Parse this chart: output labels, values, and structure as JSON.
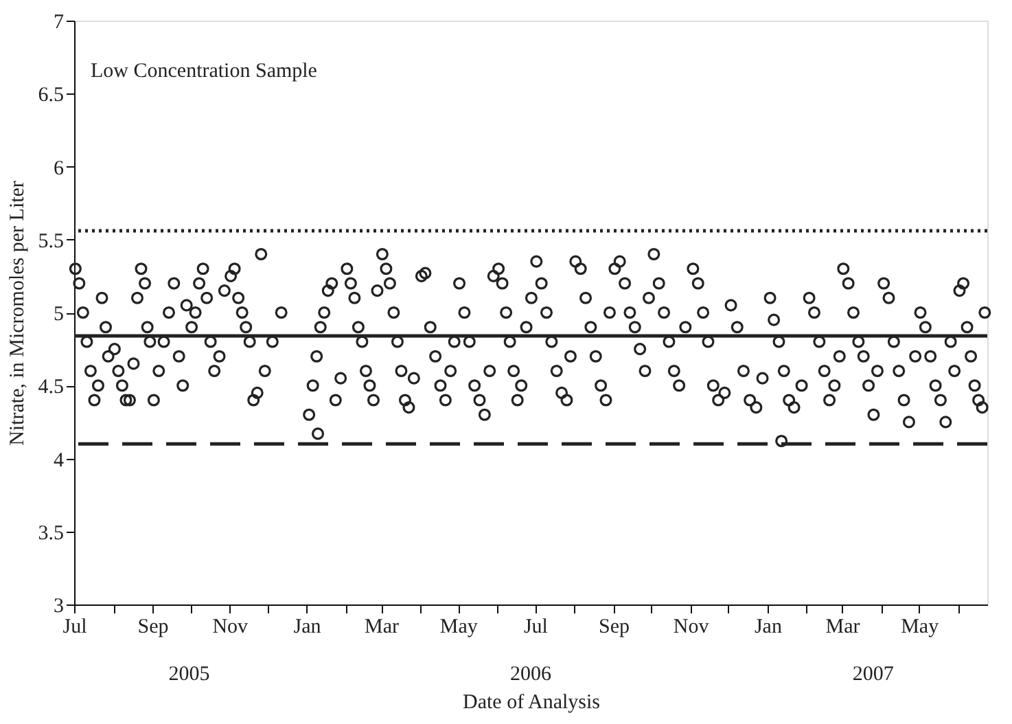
{
  "chart_data": {
    "type": "scatter",
    "xlabel": "Date of Analysis",
    "ylabel": "Nitrate, in Micromoles per Liter",
    "annotations": [
      "Low Concentration Sample",
      "2005",
      "2006",
      "2007"
    ],
    "marker": "circle",
    "grid": false,
    "xlim": [
      "2005-07-01",
      "2007-06-24"
    ],
    "xticks": [
      {
        "value": "2005-07-01",
        "label": "Jul"
      },
      {
        "value": "2005-08-01",
        "label": null
      },
      {
        "value": "2005-09-01",
        "label": "Sep"
      },
      {
        "value": "2005-10-01",
        "label": null
      },
      {
        "value": "2005-11-01",
        "label": "Nov"
      },
      {
        "value": "2005-12-01",
        "label": null
      },
      {
        "value": "2006-01-01",
        "label": "Jan"
      },
      {
        "value": "2006-02-01",
        "label": null
      },
      {
        "value": "2006-03-01",
        "label": "Mar"
      },
      {
        "value": "2006-04-01",
        "label": null
      },
      {
        "value": "2006-05-01",
        "label": "May"
      },
      {
        "value": "2006-06-01",
        "label": null
      },
      {
        "value": "2006-07-01",
        "label": "Jul"
      },
      {
        "value": "2006-08-01",
        "label": null
      },
      {
        "value": "2006-09-01",
        "label": "Sep"
      },
      {
        "value": "2006-10-01",
        "label": null
      },
      {
        "value": "2006-11-01",
        "label": "Nov"
      },
      {
        "value": "2006-12-01",
        "label": null
      },
      {
        "value": "2007-01-01",
        "label": "Jan"
      },
      {
        "value": "2007-02-01",
        "label": null
      },
      {
        "value": "2007-03-01",
        "label": "Mar"
      },
      {
        "value": "2007-04-01",
        "label": null
      },
      {
        "value": "2007-05-01",
        "label": "May"
      },
      {
        "value": "2007-06-01",
        "label": null
      }
    ],
    "ylim": [
      3,
      7
    ],
    "yticks": [
      3,
      3.5,
      4,
      4.5,
      5,
      5.5,
      6,
      6.5,
      7
    ],
    "ref_lines": [
      {
        "axis": "y",
        "value": 5.56,
        "line_style": "dotted",
        "color": "#222222"
      },
      {
        "axis": "y",
        "value": 4.84,
        "line_style": "solid",
        "color": "#222222"
      },
      {
        "axis": "y",
        "value": 4.1,
        "line_style": "dashed",
        "color": "#222222"
      }
    ],
    "series": [
      {
        "color": "#222222",
        "x": [
          "2005-07-02",
          "2005-07-05",
          "2005-07-08",
          "2005-07-11",
          "2005-07-14",
          "2005-07-17",
          "2005-07-20",
          "2005-07-23",
          "2005-07-26",
          "2005-07-28",
          "2005-08-02",
          "2005-08-05",
          "2005-08-08",
          "2005-08-11",
          "2005-08-14",
          "2005-08-17",
          "2005-08-20",
          "2005-08-23",
          "2005-08-26",
          "2005-08-28",
          "2005-08-30",
          "2005-09-02",
          "2005-09-06",
          "2005-09-10",
          "2005-09-14",
          "2005-09-18",
          "2005-09-22",
          "2005-09-25",
          "2005-09-28",
          "2005-10-02",
          "2005-10-05",
          "2005-10-08",
          "2005-10-11",
          "2005-10-14",
          "2005-10-17",
          "2005-10-20",
          "2005-10-24",
          "2005-10-28",
          "2005-11-02",
          "2005-11-05",
          "2005-11-08",
          "2005-11-11",
          "2005-11-14",
          "2005-11-17",
          "2005-11-20",
          "2005-11-23",
          "2005-11-26",
          "2005-11-29",
          "2005-12-05",
          "2005-12-12",
          "2006-01-03",
          "2006-01-06",
          "2006-01-09",
          "2006-01-12",
          "2006-01-15",
          "2006-01-18",
          "2006-01-21",
          "2006-01-24",
          "2006-01-10",
          "2006-01-28",
          "2006-02-02",
          "2006-02-05",
          "2006-02-08",
          "2006-02-11",
          "2006-02-14",
          "2006-02-17",
          "2006-02-20",
          "2006-02-23",
          "2006-02-26",
          "2006-03-02",
          "2006-03-05",
          "2006-03-08",
          "2006-03-11",
          "2006-03-14",
          "2006-03-17",
          "2006-03-20",
          "2006-03-23",
          "2006-03-27",
          "2006-04-02",
          "2006-04-05",
          "2006-04-09",
          "2006-04-13",
          "2006-04-17",
          "2006-04-21",
          "2006-04-25",
          "2006-04-28",
          "2006-05-02",
          "2006-05-06",
          "2006-05-10",
          "2006-05-14",
          "2006-05-18",
          "2006-05-22",
          "2006-05-26",
          "2006-05-29",
          "2006-06-02",
          "2006-06-05",
          "2006-06-08",
          "2006-06-11",
          "2006-06-14",
          "2006-06-17",
          "2006-06-20",
          "2006-06-24",
          "2006-06-28",
          "2006-07-02",
          "2006-07-06",
          "2006-07-10",
          "2006-07-14",
          "2006-07-18",
          "2006-07-22",
          "2006-07-26",
          "2006-07-29",
          "2006-08-02",
          "2006-08-06",
          "2006-08-10",
          "2006-08-14",
          "2006-08-18",
          "2006-08-22",
          "2006-08-26",
          "2006-08-29",
          "2006-09-02",
          "2006-09-06",
          "2006-09-10",
          "2006-09-14",
          "2006-09-18",
          "2006-09-22",
          "2006-09-26",
          "2006-09-29",
          "2006-10-03",
          "2006-10-07",
          "2006-10-11",
          "2006-10-15",
          "2006-10-19",
          "2006-10-23",
          "2006-10-28",
          "2006-11-03",
          "2006-11-07",
          "2006-11-11",
          "2006-11-15",
          "2006-11-19",
          "2006-11-23",
          "2006-11-28",
          "2006-12-03",
          "2006-12-08",
          "2006-12-13",
          "2006-12-18",
          "2006-12-23",
          "2006-12-28",
          "2007-01-03",
          "2007-01-06",
          "2007-01-10",
          "2007-01-14",
          "2007-01-18",
          "2007-01-22",
          "2007-01-12",
          "2007-01-28",
          "2007-02-03",
          "2007-02-07",
          "2007-02-11",
          "2007-02-15",
          "2007-02-19",
          "2007-02-23",
          "2007-02-27",
          "2007-03-02",
          "2007-03-06",
          "2007-03-10",
          "2007-03-14",
          "2007-03-18",
          "2007-03-22",
          "2007-03-26",
          "2007-03-29",
          "2007-04-03",
          "2007-04-07",
          "2007-04-11",
          "2007-04-15",
          "2007-04-19",
          "2007-04-23",
          "2007-04-28",
          "2007-05-02",
          "2007-05-06",
          "2007-05-10",
          "2007-05-14",
          "2007-05-18",
          "2007-05-22",
          "2007-05-26",
          "2007-05-29",
          "2007-06-02",
          "2007-06-05",
          "2007-06-08",
          "2007-06-11",
          "2007-06-14",
          "2007-06-17",
          "2007-06-20",
          "2007-06-22"
        ],
        "values": [
          5.3,
          5.2,
          5.0,
          4.8,
          4.6,
          4.4,
          4.5,
          5.1,
          4.9,
          4.7,
          4.75,
          4.6,
          4.5,
          4.4,
          4.4,
          4.65,
          5.1,
          5.3,
          5.2,
          4.9,
          4.8,
          4.4,
          4.6,
          4.8,
          5.0,
          5.2,
          4.7,
          4.5,
          5.05,
          4.9,
          5.0,
          5.2,
          5.3,
          5.1,
          4.8,
          4.6,
          4.7,
          5.15,
          5.25,
          5.3,
          5.1,
          5.0,
          4.9,
          4.8,
          4.4,
          4.45,
          5.4,
          4.6,
          4.8,
          5.0,
          4.3,
          4.5,
          4.7,
          4.9,
          5.0,
          5.15,
          5.2,
          4.4,
          4.17,
          4.55,
          5.3,
          5.2,
          5.1,
          4.9,
          4.8,
          4.6,
          4.5,
          4.4,
          5.15,
          5.4,
          5.3,
          5.2,
          5.0,
          4.8,
          4.6,
          4.4,
          4.35,
          4.55,
          5.25,
          5.27,
          4.9,
          4.7,
          4.5,
          4.4,
          4.6,
          4.8,
          5.2,
          5.0,
          4.8,
          4.5,
          4.4,
          4.3,
          4.6,
          5.25,
          5.3,
          5.2,
          5.0,
          4.8,
          4.6,
          4.4,
          4.5,
          4.9,
          5.1,
          5.35,
          5.2,
          5.0,
          4.8,
          4.6,
          4.45,
          4.4,
          4.7,
          5.35,
          5.3,
          5.1,
          4.9,
          4.7,
          4.5,
          4.4,
          5.0,
          5.3,
          5.35,
          5.2,
          5.0,
          4.9,
          4.75,
          4.6,
          5.1,
          5.4,
          5.2,
          5.0,
          4.8,
          4.6,
          4.5,
          4.9,
          5.3,
          5.2,
          5.0,
          4.8,
          4.5,
          4.4,
          4.45,
          5.05,
          4.9,
          4.6,
          4.4,
          4.35,
          4.55,
          5.1,
          4.95,
          4.8,
          4.6,
          4.4,
          4.35,
          4.12,
          4.5,
          5.1,
          5.0,
          4.8,
          4.6,
          4.4,
          4.5,
          4.7,
          5.3,
          5.2,
          5.0,
          4.8,
          4.7,
          4.5,
          4.3,
          4.6,
          5.2,
          5.1,
          4.8,
          4.6,
          4.4,
          4.25,
          4.7,
          5.0,
          4.9,
          4.7,
          4.5,
          4.4,
          4.25,
          4.8,
          4.6,
          5.15,
          5.2,
          4.9,
          4.7,
          4.5,
          4.4,
          4.35,
          5.0
        ]
      }
    ]
  }
}
